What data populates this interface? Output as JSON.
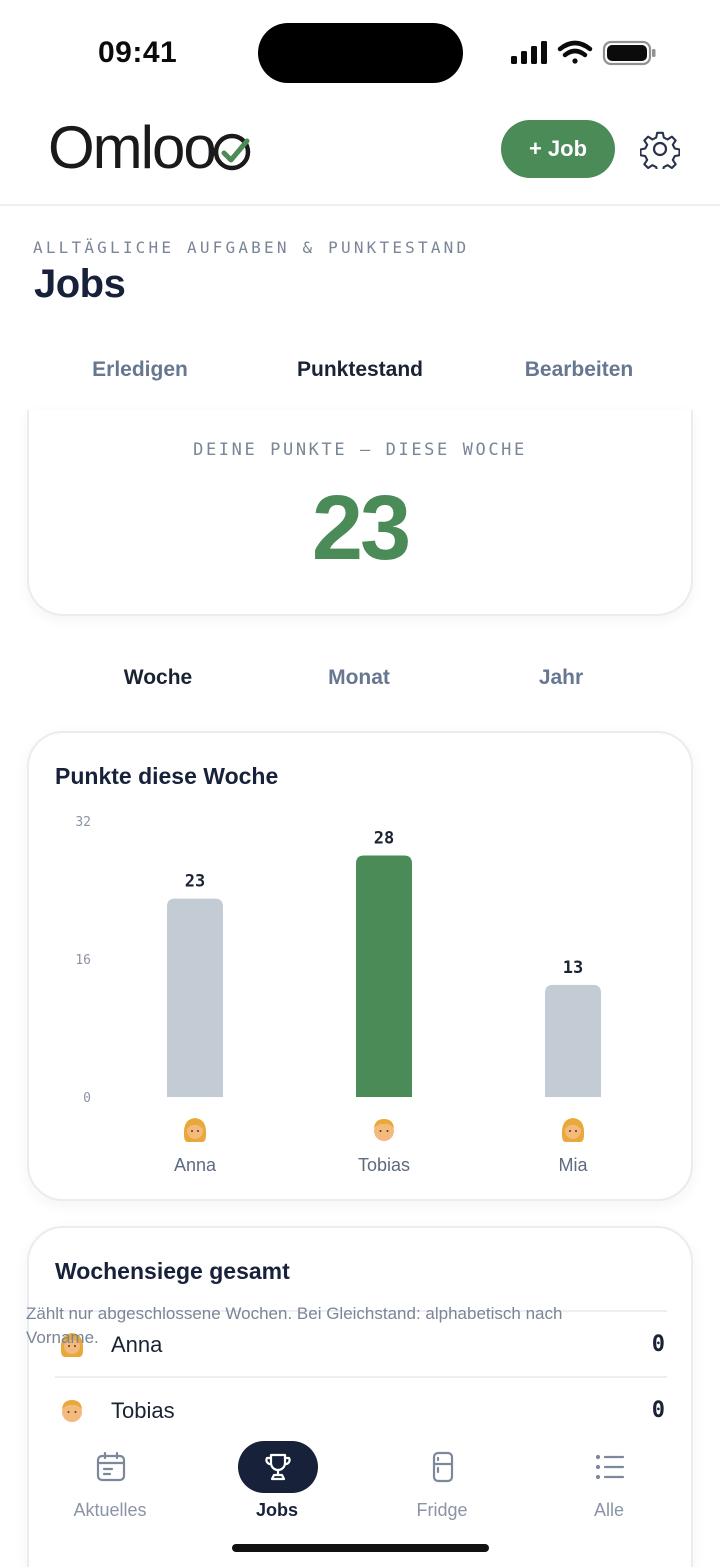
{
  "status_bar": {
    "time": "09:41"
  },
  "header": {
    "logo_text": "Omloo",
    "add_job_label": "+ Job"
  },
  "page": {
    "eyebrow": "ALLTÄGLICHE AUFGABEN & PUNKTESTAND",
    "title": "Jobs"
  },
  "tabs": [
    {
      "label": "Erledigen",
      "active": false
    },
    {
      "label": "Punktestand",
      "active": true
    },
    {
      "label": "Bearbeiten",
      "active": false
    }
  ],
  "points": {
    "label": "DEINE PUNKTE — DIESE WOCHE",
    "value": "23"
  },
  "periods": [
    {
      "label": "Woche",
      "active": true
    },
    {
      "label": "Monat",
      "active": false
    },
    {
      "label": "Jahr",
      "active": false
    }
  ],
  "chart_data": {
    "type": "bar",
    "title": "Punkte diese Woche",
    "categories": [
      "Anna",
      "Tobias",
      "Mia"
    ],
    "values": [
      23,
      28,
      13
    ],
    "ylim": [
      0,
      32
    ],
    "yticks": [
      "0",
      "16",
      "32"
    ],
    "highlight_index": 1,
    "bar_color": "#c3cbd5",
    "highlight_color": "#4a8b57",
    "emojis": [
      "woman-emoji",
      "man-emoji",
      "girl-emoji"
    ],
    "grid": false
  },
  "wins": {
    "title": "Wochensiege gesamt",
    "rows": [
      {
        "name": "Anna",
        "count": "0",
        "emoji": "woman-emoji"
      },
      {
        "name": "Tobias",
        "count": "0",
        "emoji": "man-emoji"
      }
    ],
    "note": "Zählt nur abgeschlossene Wochen. Bei Gleichstand: alphabetisch nach Vorname."
  },
  "nav": [
    {
      "label": "Aktuelles",
      "icon": "calendar-icon",
      "active": false
    },
    {
      "label": "Jobs",
      "icon": "trophy-icon",
      "active": true
    },
    {
      "label": "Fridge",
      "icon": "fridge-icon",
      "active": false
    },
    {
      "label": "Alle",
      "icon": "list-icon",
      "active": false
    }
  ],
  "colors": {
    "accent": "#4a8b57",
    "ink": "#17213a",
    "muted": "#677791"
  }
}
